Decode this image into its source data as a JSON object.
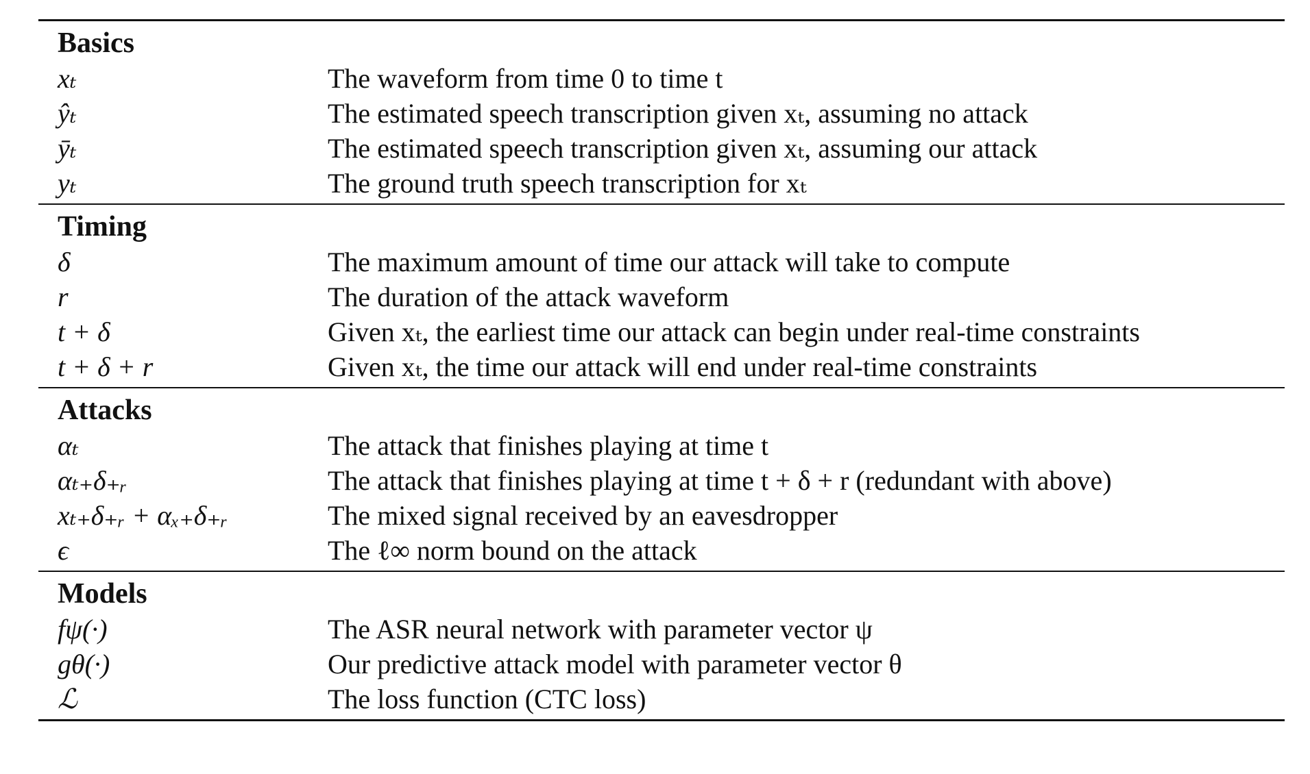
{
  "sections": [
    {
      "title": "Basics",
      "rows": [
        {
          "symbol": "xₜ",
          "description": "The waveform from time 0 to time t"
        },
        {
          "symbol": "ŷₜ",
          "description": "The estimated speech transcription given xₜ, assuming no attack"
        },
        {
          "symbol": "ȳₜ",
          "description": "The estimated speech transcription given xₜ, assuming our attack"
        },
        {
          "symbol": "yₜ",
          "description": "The ground truth speech transcription for xₜ"
        }
      ]
    },
    {
      "title": "Timing",
      "rows": [
        {
          "symbol": "δ",
          "description": "The maximum amount of time our attack will take to compute"
        },
        {
          "symbol": "r",
          "description": "The duration of the attack waveform"
        },
        {
          "symbol": "t + δ",
          "description": "Given xₜ, the earliest time our attack can begin under real-time constraints"
        },
        {
          "symbol": "t + δ + r",
          "description": "Given xₜ, the time our attack will end under real-time constraints"
        }
      ]
    },
    {
      "title": "Attacks",
      "rows": [
        {
          "symbol": "αₜ",
          "description": "The attack that finishes playing at time t"
        },
        {
          "symbol": "αₜ₊δ₊ᵣ",
          "description": "The attack that finishes playing at time t + δ + r (redundant with above)"
        },
        {
          "symbol": "xₜ₊δ₊ᵣ + αₓ₊δ₊ᵣ",
          "description": "The mixed signal received by an eavesdropper"
        },
        {
          "symbol": "ϵ",
          "description": "The ℓ∞ norm bound on the attack"
        }
      ]
    },
    {
      "title": "Models",
      "rows": [
        {
          "symbol": "fψ(·)",
          "description": "The ASR neural network with parameter vector ψ"
        },
        {
          "symbol": "gθ(·)",
          "description": "Our predictive attack model with parameter vector θ"
        },
        {
          "symbol": "ℒ",
          "description": "The loss function (CTC loss)"
        }
      ]
    }
  ]
}
